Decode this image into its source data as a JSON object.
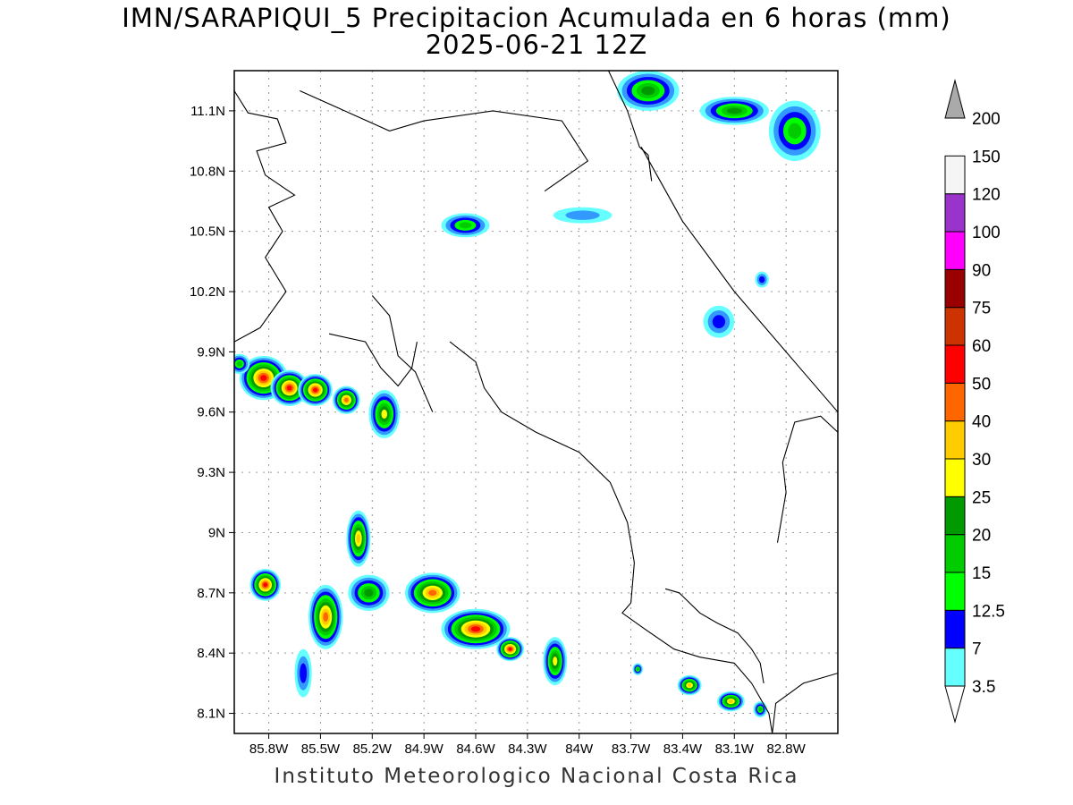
{
  "title": {
    "line1": "IMN/SARAPIQUI_5 Precipitacion Acumulada en 6 horas (mm)",
    "line2": "2025-06-21 12Z"
  },
  "footer": "Instituto Meteorologico Nacional Costa Rica",
  "map": {
    "lon_range": [
      -86.0,
      -82.5
    ],
    "lat_range": [
      8.0,
      11.3
    ],
    "lon_ticks": [
      {
        "value": -85.8,
        "label": "85.8W"
      },
      {
        "value": -85.5,
        "label": "85.5W"
      },
      {
        "value": -85.2,
        "label": "85.2W"
      },
      {
        "value": -84.9,
        "label": "84.9W"
      },
      {
        "value": -84.6,
        "label": "84.6W"
      },
      {
        "value": -84.3,
        "label": "84.3W"
      },
      {
        "value": -84.0,
        "label": "84W"
      },
      {
        "value": -83.7,
        "label": "83.7W"
      },
      {
        "value": -83.4,
        "label": "83.4W"
      },
      {
        "value": -83.1,
        "label": "83.1W"
      },
      {
        "value": -82.8,
        "label": "82.8W"
      }
    ],
    "lat_ticks": [
      {
        "value": 11.1,
        "label": "11.1N"
      },
      {
        "value": 10.8,
        "label": "10.8N"
      },
      {
        "value": 10.5,
        "label": "10.5N"
      },
      {
        "value": 10.2,
        "label": "10.2N"
      },
      {
        "value": 9.9,
        "label": "9.9N"
      },
      {
        "value": 9.6,
        "label": "9.6N"
      },
      {
        "value": 9.3,
        "label": "9.3N"
      },
      {
        "value": 9.0,
        "label": "9N"
      },
      {
        "value": 8.7,
        "label": "8.7N"
      },
      {
        "value": 8.4,
        "label": "8.4N"
      },
      {
        "value": 8.1,
        "label": "8.1N"
      }
    ],
    "grid": true
  },
  "colorbar": {
    "levels": [
      {
        "label": "3.5",
        "color": "#66ffff"
      },
      {
        "label": "7",
        "color": "#3399ff"
      },
      {
        "label": "12.5",
        "color": "#0000ff"
      },
      {
        "label": "15",
        "color": "#00ff00"
      },
      {
        "label": "20",
        "color": "#00cc00"
      },
      {
        "label": "25",
        "color": "#009900"
      },
      {
        "label": "30",
        "color": "#ffff00"
      },
      {
        "label": "40",
        "color": "#ffcc00"
      },
      {
        "label": "50",
        "color": "#ff6600"
      },
      {
        "label": "60",
        "color": "#ff0000"
      },
      {
        "label": "75",
        "color": "#cc3300"
      },
      {
        "label": "90",
        "color": "#990000"
      },
      {
        "label": "100",
        "color": "#ff00ff"
      },
      {
        "label": "120",
        "color": "#9933cc"
      },
      {
        "label": "150",
        "color": "#f5f5f5"
      },
      {
        "label": "200",
        "color": "#aaaaaa"
      }
    ]
  },
  "precip_cells": [
    {
      "lon": -85.83,
      "lat": 9.77,
      "rx": 0.14,
      "ry": 0.11,
      "level": 9
    },
    {
      "lon": -85.68,
      "lat": 9.72,
      "rx": 0.11,
      "ry": 0.09,
      "level": 9
    },
    {
      "lon": -85.53,
      "lat": 9.71,
      "rx": 0.1,
      "ry": 0.08,
      "level": 9
    },
    {
      "lon": -85.35,
      "lat": 9.66,
      "rx": 0.08,
      "ry": 0.07,
      "level": 8
    },
    {
      "lon": -85.13,
      "lat": 9.59,
      "rx": 0.09,
      "ry": 0.12,
      "level": 6
    },
    {
      "lon": -85.97,
      "lat": 9.84,
      "rx": 0.06,
      "ry": 0.05,
      "level": 4
    },
    {
      "lon": -84.66,
      "lat": 10.53,
      "rx": 0.14,
      "ry": 0.06,
      "level": 4
    },
    {
      "lon": -83.98,
      "lat": 10.58,
      "rx": 0.17,
      "ry": 0.04,
      "level": 1
    },
    {
      "lon": -83.19,
      "lat": 10.05,
      "rx": 0.09,
      "ry": 0.08,
      "level": 2
    },
    {
      "lon": -82.94,
      "lat": 10.26,
      "rx": 0.04,
      "ry": 0.04,
      "level": 2
    },
    {
      "lon": -83.1,
      "lat": 11.1,
      "rx": 0.2,
      "ry": 0.07,
      "level": 5
    },
    {
      "lon": -83.6,
      "lat": 11.2,
      "rx": 0.18,
      "ry": 0.1,
      "level": 5
    },
    {
      "lon": -82.75,
      "lat": 11.0,
      "rx": 0.15,
      "ry": 0.15,
      "level": 4
    },
    {
      "lon": -85.28,
      "lat": 8.97,
      "rx": 0.07,
      "ry": 0.14,
      "level": 7
    },
    {
      "lon": -85.47,
      "lat": 8.58,
      "rx": 0.1,
      "ry": 0.16,
      "level": 8
    },
    {
      "lon": -85.22,
      "lat": 8.7,
      "rx": 0.12,
      "ry": 0.09,
      "level": 5
    },
    {
      "lon": -85.82,
      "lat": 8.74,
      "rx": 0.09,
      "ry": 0.08,
      "level": 9
    },
    {
      "lon": -84.85,
      "lat": 8.7,
      "rx": 0.16,
      "ry": 0.1,
      "level": 8
    },
    {
      "lon": -84.6,
      "lat": 8.52,
      "rx": 0.2,
      "ry": 0.1,
      "level": 9
    },
    {
      "lon": -84.4,
      "lat": 8.42,
      "rx": 0.08,
      "ry": 0.06,
      "level": 9
    },
    {
      "lon": -84.14,
      "lat": 8.36,
      "rx": 0.07,
      "ry": 0.12,
      "level": 6
    },
    {
      "lon": -85.6,
      "lat": 8.3,
      "rx": 0.05,
      "ry": 0.12,
      "level": 2
    },
    {
      "lon": -83.36,
      "lat": 8.24,
      "rx": 0.07,
      "ry": 0.05,
      "level": 7
    },
    {
      "lon": -83.12,
      "lat": 8.16,
      "rx": 0.08,
      "ry": 0.05,
      "level": 7
    },
    {
      "lon": -82.95,
      "lat": 8.12,
      "rx": 0.04,
      "ry": 0.04,
      "level": 4
    },
    {
      "lon": -83.66,
      "lat": 8.32,
      "rx": 0.03,
      "ry": 0.03,
      "level": 4
    }
  ],
  "coastlines": [
    [
      [
        -86.0,
        11.2
      ],
      [
        -85.92,
        11.09
      ],
      [
        -85.75,
        11.06
      ],
      [
        -85.7,
        10.94
      ],
      [
        -85.87,
        10.9
      ],
      [
        -85.82,
        10.78
      ],
      [
        -85.65,
        10.68
      ],
      [
        -85.8,
        10.62
      ],
      [
        -85.72,
        10.5
      ],
      [
        -85.82,
        10.37
      ],
      [
        -85.7,
        10.2
      ],
      [
        -85.85,
        10.02
      ],
      [
        -86.0,
        9.95
      ]
    ],
    [
      [
        -85.62,
        11.2
      ],
      [
        -85.1,
        11.0
      ],
      [
        -84.9,
        11.05
      ],
      [
        -84.5,
        11.1
      ],
      [
        -84.1,
        11.05
      ],
      [
        -83.95,
        10.85
      ],
      [
        -84.2,
        10.7
      ]
    ],
    [
      [
        -83.83,
        11.3
      ],
      [
        -83.72,
        11.1
      ],
      [
        -83.65,
        10.92
      ],
      [
        -83.6,
        10.88
      ],
      [
        -83.58,
        10.75
      ]
    ],
    [
      [
        -83.64,
        10.92
      ],
      [
        -83.4,
        10.55
      ],
      [
        -83.1,
        10.2
      ],
      [
        -82.8,
        9.9
      ],
      [
        -82.5,
        9.6
      ]
    ],
    [
      [
        -85.45,
        9.99
      ],
      [
        -85.24,
        9.95
      ],
      [
        -85.15,
        9.82
      ],
      [
        -85.05,
        9.73
      ],
      [
        -84.97,
        9.82
      ],
      [
        -84.94,
        9.95
      ]
    ],
    [
      [
        -85.2,
        10.18
      ],
      [
        -85.1,
        10.08
      ],
      [
        -85.05,
        9.88
      ],
      [
        -84.95,
        9.8
      ],
      [
        -84.85,
        9.6
      ]
    ],
    [
      [
        -84.75,
        9.95
      ],
      [
        -84.6,
        9.85
      ],
      [
        -84.55,
        9.72
      ],
      [
        -84.45,
        9.6
      ],
      [
        -84.25,
        9.5
      ],
      [
        -84.0,
        9.4
      ],
      [
        -83.82,
        9.25
      ],
      [
        -83.72,
        9.05
      ],
      [
        -83.68,
        8.85
      ],
      [
        -83.7,
        8.65
      ]
    ],
    [
      [
        -83.7,
        8.65
      ],
      [
        -83.75,
        8.6
      ],
      [
        -83.62,
        8.52
      ],
      [
        -83.45,
        8.42
      ],
      [
        -83.3,
        8.38
      ],
      [
        -83.1,
        8.35
      ],
      [
        -83.0,
        8.25
      ],
      [
        -82.9,
        8.1
      ],
      [
        -82.88,
        8.0
      ]
    ],
    [
      [
        -83.5,
        8.72
      ],
      [
        -83.42,
        8.7
      ],
      [
        -83.3,
        8.6
      ],
      [
        -83.2,
        8.55
      ],
      [
        -83.08,
        8.5
      ],
      [
        -83.0,
        8.42
      ],
      [
        -82.95,
        8.35
      ],
      [
        -82.93,
        8.25
      ]
    ],
    [
      [
        -82.88,
        8.0
      ],
      [
        -82.86,
        8.15
      ],
      [
        -82.7,
        8.25
      ],
      [
        -82.5,
        8.3
      ]
    ],
    [
      [
        -82.85,
        8.95
      ],
      [
        -82.8,
        9.2
      ],
      [
        -82.82,
        9.35
      ],
      [
        -82.75,
        9.55
      ],
      [
        -82.6,
        9.58
      ],
      [
        -82.5,
        9.5
      ]
    ]
  ]
}
